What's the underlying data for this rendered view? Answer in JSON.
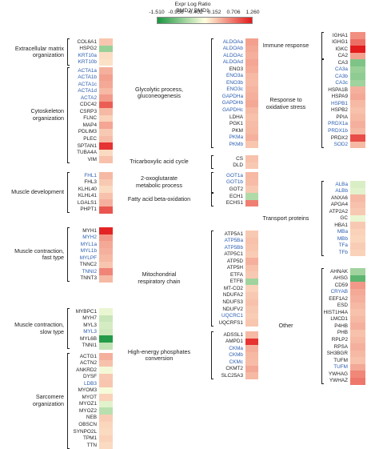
{
  "legend": {
    "title": "Expr Log Ratio",
    "subtitle": "BMD2/ BMD1",
    "ticks": [
      "-1.510",
      "-0.956",
      "-0.402",
      "0.152",
      "0.706",
      "1.260"
    ],
    "min": -1.51,
    "max": 1.26,
    "colors": {
      "low": "#1a9641",
      "mid": "#ffffe0",
      "high": "#e31a1c"
    }
  },
  "columns": [
    {
      "groups": [
        {
          "label": [
            "Extracellular matrix",
            "organization"
          ],
          "genes": [
            [
              "COL6A1",
              0,
              0.22
            ],
            [
              "HSPG2",
              0,
              -0.75
            ],
            [
              "KRT10a",
              1,
              0.08
            ],
            [
              "KRT10b",
              1,
              0.05
            ]
          ]
        },
        {
          "label": [
            "Cytoskeleton",
            "organization"
          ],
          "genes": [
            [
              "ACTA1a",
              1,
              0.35
            ],
            [
              "ACTA1b",
              1,
              0.45
            ],
            [
              "ACTA1c",
              1,
              0.4
            ],
            [
              "ACTA1d",
              1,
              0.3
            ],
            [
              "ACTA2",
              1,
              0.48
            ],
            [
              "CDC42",
              0,
              0.85
            ],
            [
              "CSRP3",
              0,
              0.3
            ],
            [
              "FLNC",
              0,
              0.15
            ],
            [
              "MAP4",
              0,
              0.42
            ],
            [
              "PDLIM3",
              0,
              0.2
            ],
            [
              "PLEC",
              0,
              0.28
            ],
            [
              "SPTAN1",
              0,
              1.1
            ],
            [
              "TUBA4A",
              0,
              0.1
            ],
            [
              "VIM",
              0,
              0.25
            ]
          ]
        },
        {
          "label": [
            "Muscle development"
          ],
          "genes": [
            [
              "FHL1",
              1,
              0.3
            ],
            [
              "FHL3",
              0,
              0.2
            ],
            [
              "KLHL40",
              0,
              0.1
            ],
            [
              "KLHL41",
              0,
              0.25
            ],
            [
              "LGALS1",
              0,
              0.35
            ],
            [
              "PHPT1",
              0,
              0.9
            ]
          ]
        },
        {
          "label": [
            "Muscle contraction,",
            "fast type"
          ],
          "genes": [
            [
              "MYH1",
              0,
              1.2
            ],
            [
              "MYH2",
              1,
              0.5
            ],
            [
              "MYL1a",
              1,
              0.4
            ],
            [
              "MYL1b",
              1,
              0.35
            ],
            [
              "MYLPF",
              1,
              0.3
            ],
            [
              "TNNC2",
              0,
              0.22
            ],
            [
              "TNNI2",
              1,
              0.62
            ],
            [
              "TNNT3",
              0,
              0.3
            ]
          ]
        },
        {
          "label": [
            "Muscle contraction,",
            "slow type"
          ],
          "genes": [
            [
              "MYBPC1",
              0,
              -0.25
            ],
            [
              "MYH7",
              0,
              -0.45
            ],
            [
              "MYL3",
              0,
              -0.38
            ],
            [
              "MYL3",
              1,
              -0.42
            ],
            [
              "MYL6B",
              0,
              -1.45
            ],
            [
              "TNNI1",
              0,
              -0.5
            ]
          ]
        },
        {
          "label": [
            "Sarcomere",
            "organization"
          ],
          "genes": [
            [
              "ACTG1",
              0,
              0.35
            ],
            [
              "ACTN2",
              0,
              0.25
            ],
            [
              "ANKRD2",
              0,
              -0.2
            ],
            [
              "DYSF",
              0,
              0.2
            ],
            [
              "LDB3",
              1,
              0.22
            ],
            [
              "MYOM3",
              0,
              -0.18
            ],
            [
              "MYOT",
              0,
              0.15
            ],
            [
              "MYOZ1",
              0,
              -0.3
            ],
            [
              "MYOZ2",
              0,
              -0.55
            ],
            [
              "NEB",
              0,
              0.18
            ],
            [
              "OBSCN",
              0,
              0.12
            ],
            [
              "SYNPO2L",
              0,
              0.1
            ],
            [
              "TPM1",
              0,
              0.15
            ],
            [
              "TTN",
              0,
              0.1
            ]
          ]
        }
      ]
    },
    {
      "groups": [
        {
          "label": [
            "Glycolytic process,",
            "gluconeogenesis"
          ],
          "genes": [
            [
              "ALDOAa",
              1,
              0.45
            ],
            [
              "ALDOAb",
              1,
              0.4
            ],
            [
              "ALDOAc",
              1,
              0.35
            ],
            [
              "ALDOAd",
              1,
              0.42
            ],
            [
              "ENO3",
              0,
              0.38
            ],
            [
              "ENO3a",
              1,
              0.3
            ],
            [
              "ENO3b",
              1,
              0.28
            ],
            [
              "ENO3c",
              1,
              0.32
            ],
            [
              "GAPDHa",
              1,
              0.35
            ],
            [
              "GAPDHb",
              1,
              0.4
            ],
            [
              "GAPDHc",
              1,
              0.3
            ],
            [
              "LDHA",
              0,
              0.25
            ],
            [
              "PGK1",
              0,
              0.28
            ],
            [
              "PKM",
              0,
              0.3
            ],
            [
              "PKMa",
              1,
              0.35
            ],
            [
              "PKMb",
              1,
              0.22
            ]
          ]
        },
        {
          "label": [
            "Tricarboxylic acid cycle"
          ],
          "genes": [
            [
              "CS",
              0,
              0.25
            ],
            [
              "DLD",
              0,
              0.2
            ]
          ]
        },
        {
          "label": [
            "2-oxoglutarate",
            "metabolic process"
          ],
          "genes": [
            [
              "GOT1a",
              1,
              0.3
            ],
            [
              "GOT1b",
              1,
              0.28
            ],
            [
              "GOT2",
              0,
              0.2
            ]
          ]
        },
        {
          "label": [
            "Fatty acid beta-oxidation"
          ],
          "genes": [
            [
              "ECH1",
              0,
              -0.6
            ],
            [
              "ECHS1",
              0,
              0.65
            ]
          ]
        },
        {
          "label": [
            "Mitochondrial",
            "respiratory chain"
          ],
          "genes": [
            [
              "ATP5A1",
              0,
              0.2
            ],
            [
              "ATP5Ba",
              1,
              0.25
            ],
            [
              "ATP5Bb",
              1,
              0.22
            ],
            [
              "ATP5C1",
              0,
              0.18
            ],
            [
              "ATP5D",
              0,
              0.35
            ],
            [
              "ATP5H",
              0,
              0.25
            ],
            [
              "ETFA",
              0,
              0.2
            ],
            [
              "ETFB",
              0,
              -0.7
            ],
            [
              "MT-CO2",
              0,
              0.15
            ],
            [
              "NDUFA2",
              0,
              0.2
            ],
            [
              "NDUFS3",
              0,
              0.25
            ],
            [
              "NDUFV2",
              0,
              0.2
            ],
            [
              "UQCRC1",
              1,
              0.18
            ],
            [
              "UQCRFS1",
              0,
              0.22
            ]
          ]
        },
        {
          "label": [
            "High-energy phosphates",
            "conversion"
          ],
          "genes": [
            [
              "ADSSL1",
              0,
              0.3
            ],
            [
              "AMPD1",
              0,
              1.1
            ],
            [
              "CKMa",
              1,
              0.35
            ],
            [
              "CKMb",
              1,
              0.3
            ],
            [
              "CKMc",
              1,
              0.28
            ],
            [
              "CKMT2",
              0,
              0.4
            ],
            [
              "SLC25A3",
              0,
              0.3
            ]
          ]
        }
      ]
    },
    {
      "groups": [
        {
          "label": [
            "Immune response"
          ],
          "genes": [
            [
              "IGHA1",
              0,
              0.55
            ],
            [
              "IGHG1",
              0,
              0.75
            ],
            [
              "IGKC",
              0,
              1.25
            ],
            [
              "CA2",
              0,
              0.45
            ]
          ]
        },
        {
          "label": [
            "Response to",
            "oxidative stress"
          ],
          "genes": [
            [
              "CA3",
              0,
              -0.9
            ],
            [
              "CA3a",
              1,
              -0.75
            ],
            [
              "CA3b",
              1,
              -0.8
            ],
            [
              "CA3c",
              1,
              -0.7
            ],
            [
              "HSPA1B",
              0,
              0.35
            ],
            [
              "HSPA9",
              0,
              0.4
            ],
            [
              "HSPB1",
              1,
              0.3
            ],
            [
              "HSPB2",
              0,
              0.25
            ],
            [
              "PPIA",
              0,
              0.3
            ],
            [
              "PRDX1a",
              1,
              0.35
            ],
            [
              "PRDX1b",
              1,
              0.3
            ],
            [
              "PRDX2",
              0,
              0.95
            ],
            [
              "SOD2",
              1,
              0.3
            ]
          ]
        },
        {
          "label": [
            "Transport proteins"
          ],
          "genes": [
            [
              "ALBa",
              1,
              -0.35
            ],
            [
              "ALBb",
              1,
              -0.3
            ],
            [
              "ANXA6",
              0,
              0.3
            ],
            [
              "APOA4",
              0,
              0.25
            ],
            [
              "ATP2A2",
              0,
              0.2
            ],
            [
              "GC",
              0,
              -0.25
            ],
            [
              "HBA1",
              0,
              0.2
            ],
            [
              "MBa",
              1,
              0.15
            ],
            [
              "MBb",
              1,
              0.12
            ],
            [
              "TFa",
              1,
              0.18
            ],
            [
              "TFb",
              1,
              0.15
            ]
          ]
        },
        {
          "label": [
            "Other"
          ],
          "genes": [
            [
              "AHNAK",
              0,
              -0.7
            ],
            [
              "AHSG",
              0,
              -1.1
            ],
            [
              "CD59",
              0,
              0.5
            ],
            [
              "CRYAB",
              1,
              0.4
            ],
            [
              "EEF1A2",
              0,
              0.35
            ],
            [
              "ESD",
              0,
              0.3
            ],
            [
              "HIST1H4A",
              0,
              0.25
            ],
            [
              "LMCD1",
              0,
              0.3
            ],
            [
              "P4HB",
              0,
              0.35
            ],
            [
              "PHB",
              0,
              0.25
            ],
            [
              "RPLP2",
              0,
              0.3
            ],
            [
              "RPSA",
              0,
              0.35
            ],
            [
              "SH3BGR",
              0,
              0.3
            ],
            [
              "TUFM",
              0,
              0.25
            ],
            [
              "TUFM",
              1,
              0.4
            ],
            [
              "YWHAG",
              0,
              0.6
            ],
            [
              "YWHAZ",
              0,
              0.7
            ]
          ]
        }
      ]
    }
  ]
}
